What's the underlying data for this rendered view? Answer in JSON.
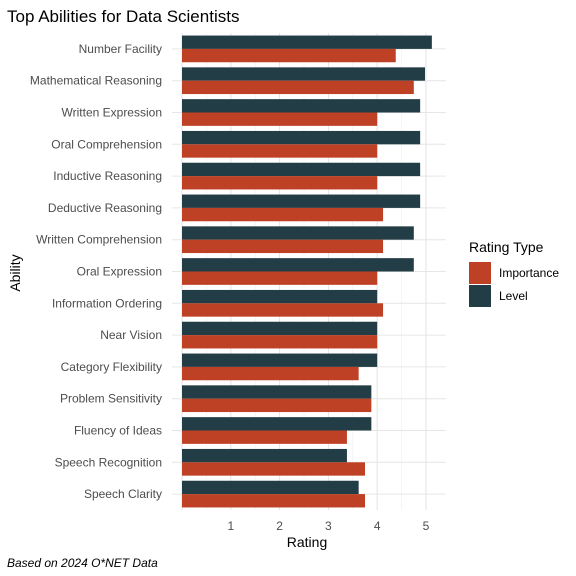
{
  "chart_data": {
    "type": "bar",
    "orientation": "horizontal",
    "title": "Top Abilities for Data Scientists",
    "xlabel": "Rating",
    "ylabel": "Ability",
    "caption": "Based on 2024 O*NET Data",
    "xlim": [
      0,
      5.3
    ],
    "xticks": [
      1,
      2,
      3,
      4,
      5
    ],
    "grid": true,
    "legend": {
      "title": "Rating Type",
      "position": "right"
    },
    "categories": [
      "Number Facility",
      "Mathematical Reasoning",
      "Written Expression",
      "Oral Comprehension",
      "Inductive Reasoning",
      "Deductive Reasoning",
      "Written Comprehension",
      "Oral Expression",
      "Information Ordering",
      "Near Vision",
      "Category Flexibility",
      "Problem Sensitivity",
      "Fluency of Ideas",
      "Speech Recognition",
      "Speech Clarity"
    ],
    "series": [
      {
        "name": "Importance",
        "color": "#bf4125",
        "values": [
          4.38,
          4.75,
          4.0,
          4.0,
          4.0,
          4.12,
          4.12,
          4.0,
          4.12,
          4.0,
          3.62,
          3.88,
          3.38,
          3.75,
          3.75
        ]
      },
      {
        "name": "Level",
        "color": "#223d45",
        "values": [
          5.12,
          4.98,
          4.88,
          4.88,
          4.88,
          4.88,
          4.75,
          4.75,
          4.0,
          4.0,
          4.0,
          3.88,
          3.88,
          3.38,
          3.62
        ]
      }
    ]
  }
}
